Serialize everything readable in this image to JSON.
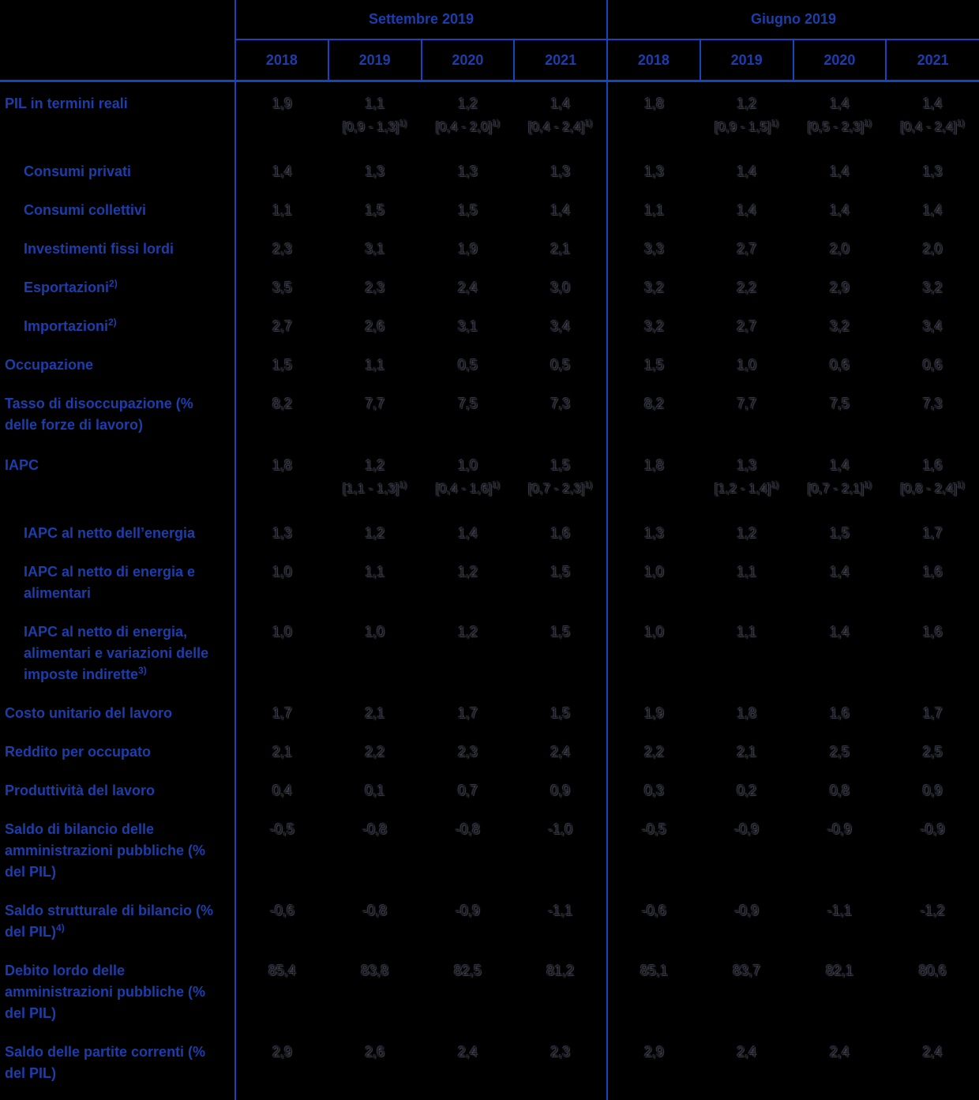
{
  "table": {
    "group_headers": [
      "Settembre 2019",
      "Giugno 2019"
    ],
    "year_headers": [
      "2018",
      "2019",
      "2020",
      "2021",
      "2018",
      "2019",
      "2020",
      "2021"
    ],
    "range_sup": "1)",
    "colors": {
      "line_blue": "#1745c0",
      "label_blue": "#1d3dab",
      "value_dark": "#15151f",
      "background": "#000000"
    },
    "rows": [
      {
        "label": "PIL in termini reali",
        "indent": false,
        "sup": "",
        "values": [
          "1,9",
          "1,1",
          "1,2",
          "1,4",
          "1,8",
          "1,2",
          "1,4",
          "1,4"
        ],
        "ranges": [
          "",
          "[0,9 - 1,3]",
          "[0,4 - 2,0]",
          "[0,4 - 2,4]",
          "",
          "[0,9 - 1,5]",
          "[0,5 - 2,3]",
          "[0,4 - 2,4]"
        ]
      },
      {
        "label": "Consumi privati",
        "indent": true,
        "sup": "",
        "values": [
          "1,4",
          "1,3",
          "1,3",
          "1,3",
          "1,3",
          "1,4",
          "1,4",
          "1,3"
        ]
      },
      {
        "label": "Consumi collettivi",
        "indent": true,
        "sup": "",
        "values": [
          "1,1",
          "1,5",
          "1,5",
          "1,4",
          "1,1",
          "1,4",
          "1,4",
          "1,4"
        ]
      },
      {
        "label": "Investimenti fissi lordi",
        "indent": true,
        "sup": "",
        "values": [
          "2,3",
          "3,1",
          "1,9",
          "2,1",
          "3,3",
          "2,7",
          "2,0",
          "2,0"
        ]
      },
      {
        "label": "Esportazioni",
        "indent": true,
        "sup": "2)",
        "values": [
          "3,5",
          "2,3",
          "2,4",
          "3,0",
          "3,2",
          "2,2",
          "2,9",
          "3,2"
        ]
      },
      {
        "label": "Importazioni",
        "indent": true,
        "sup": "2)",
        "values": [
          "2,7",
          "2,6",
          "3,1",
          "3,4",
          "3,2",
          "2,7",
          "3,2",
          "3,4"
        ]
      },
      {
        "label": "Occupazione",
        "indent": false,
        "sup": "",
        "values": [
          "1,5",
          "1,1",
          "0,5",
          "0,5",
          "1,5",
          "1,0",
          "0,6",
          "0,6"
        ]
      },
      {
        "label": "Tasso di disoccupazione (% delle forze di lavoro)",
        "indent": false,
        "sup": "",
        "values": [
          "8,2",
          "7,7",
          "7,5",
          "7,3",
          "8,2",
          "7,7",
          "7,5",
          "7,3"
        ]
      },
      {
        "label": "IAPC",
        "indent": false,
        "sup": "",
        "values": [
          "1,8",
          "1,2",
          "1,0",
          "1,5",
          "1,8",
          "1,3",
          "1,4",
          "1,6"
        ],
        "ranges": [
          "",
          "[1,1 - 1,3]",
          "[0,4 - 1,6]",
          "[0,7 - 2,3]",
          "",
          "[1,2 - 1,4]",
          "[0,7 - 2,1]",
          "[0,8 - 2,4]"
        ]
      },
      {
        "label": "IAPC al netto dell’energia",
        "indent": true,
        "sup": "",
        "values": [
          "1,3",
          "1,2",
          "1,4",
          "1,6",
          "1,3",
          "1,2",
          "1,5",
          "1,7"
        ]
      },
      {
        "label": "IAPC al netto di energia e alimentari",
        "indent": true,
        "sup": "",
        "values": [
          "1,0",
          "1,1",
          "1,2",
          "1,5",
          "1,0",
          "1,1",
          "1,4",
          "1,6"
        ]
      },
      {
        "label": "IAPC al netto di energia, alimentari e variazioni delle imposte indirette",
        "indent": true,
        "sup": "3)",
        "values": [
          "1,0",
          "1,0",
          "1,2",
          "1,5",
          "1,0",
          "1,1",
          "1,4",
          "1,6"
        ]
      },
      {
        "label": "Costo unitario del lavoro",
        "indent": false,
        "sup": "",
        "values": [
          "1,7",
          "2,1",
          "1,7",
          "1,5",
          "1,9",
          "1,8",
          "1,6",
          "1,7"
        ]
      },
      {
        "label": "Reddito per occupato",
        "indent": false,
        "sup": "",
        "values": [
          "2,1",
          "2,2",
          "2,3",
          "2,4",
          "2,2",
          "2,1",
          "2,5",
          "2,5"
        ]
      },
      {
        "label": "Produttività del lavoro",
        "indent": false,
        "sup": "",
        "values": [
          "0,4",
          "0,1",
          "0,7",
          "0,9",
          "0,3",
          "0,2",
          "0,8",
          "0,9"
        ]
      },
      {
        "label": "Saldo di bilancio delle amministrazioni pubbliche (% del PIL)",
        "indent": false,
        "sup": "",
        "values": [
          "-0,5",
          "-0,8",
          "-0,8",
          "-1,0",
          "-0,5",
          "-0,9",
          "-0,9",
          "-0,9"
        ]
      },
      {
        "label": "Saldo strutturale di bilancio (% del PIL)",
        "indent": false,
        "sup": "4)",
        "values": [
          "-0,6",
          "-0,8",
          "-0,9",
          "-1,1",
          "-0,6",
          "-0,9",
          "-1,1",
          "-1,2"
        ]
      },
      {
        "label": "Debito lordo delle amministrazioni pubbliche (% del PIL)",
        "indent": false,
        "sup": "",
        "values": [
          "85,4",
          "83,8",
          "82,5",
          "81,2",
          "85,1",
          "83,7",
          "82,1",
          "80,6"
        ]
      },
      {
        "label": "Saldo delle partite correnti (% del PIL)",
        "indent": false,
        "sup": "",
        "values": [
          "2,9",
          "2,6",
          "2,4",
          "2,3",
          "2,9",
          "2,4",
          "2,4",
          "2,4"
        ]
      }
    ]
  }
}
